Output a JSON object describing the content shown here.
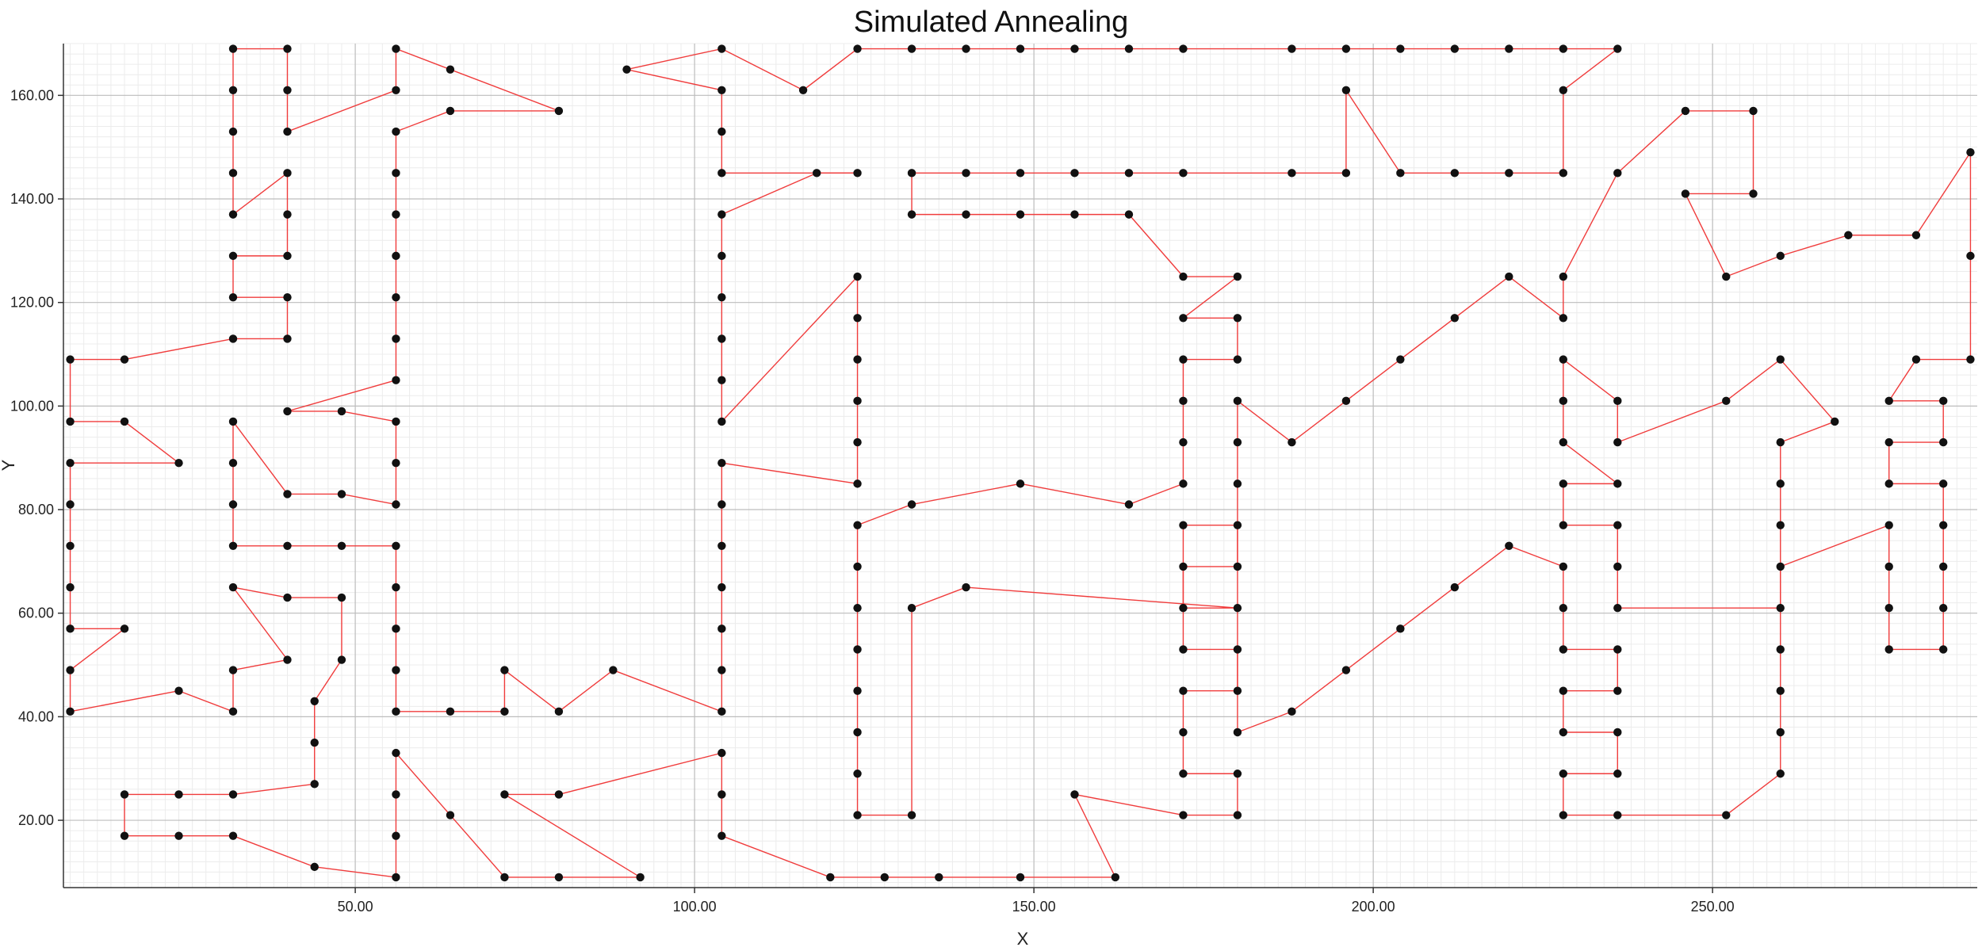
{
  "chart_data": {
    "type": "line",
    "title": "Simulated Annealing",
    "xlabel": "X",
    "ylabel": "Y",
    "xlim": [
      7,
      289
    ],
    "ylim": [
      7,
      170
    ],
    "x_ticks": [
      50,
      100,
      150,
      200,
      250
    ],
    "x_tick_labels": [
      "50.00",
      "100.00",
      "150.00",
      "200.00",
      "250.00"
    ],
    "y_ticks": [
      20,
      40,
      60,
      80,
      100,
      120,
      140,
      160
    ],
    "y_tick_labels": [
      "20.00",
      "40.00",
      "60.00",
      "80.00",
      "100.00",
      "120.00",
      "140.00",
      "160.00"
    ],
    "grid": true,
    "line_color": "#f03c3c",
    "point_color": "#111111",
    "series": [
      {
        "closed": true,
        "points": [
          [
            8,
            109
          ],
          [
            16,
            109
          ],
          [
            32,
            113
          ],
          [
            40,
            113
          ],
          [
            40,
            121
          ],
          [
            32,
            121
          ],
          [
            32,
            129
          ],
          [
            40,
            129
          ],
          [
            40,
            137
          ],
          [
            40,
            145
          ],
          [
            32,
            137
          ],
          [
            32,
            145
          ],
          [
            32,
            153
          ],
          [
            32,
            161
          ],
          [
            32,
            169
          ],
          [
            40,
            169
          ],
          [
            40,
            161
          ],
          [
            40,
            153
          ],
          [
            56,
            161
          ],
          [
            56,
            169
          ],
          [
            64,
            165
          ],
          [
            80,
            157
          ],
          [
            64,
            157
          ],
          [
            56,
            153
          ],
          [
            56,
            145
          ],
          [
            56,
            137
          ],
          [
            56,
            129
          ],
          [
            56,
            121
          ],
          [
            56,
            113
          ],
          [
            56,
            105
          ],
          [
            40,
            99
          ],
          [
            48,
            99
          ],
          [
            56,
            97
          ],
          [
            56,
            89
          ],
          [
            56,
            81
          ],
          [
            48,
            83
          ],
          [
            40,
            83
          ],
          [
            32,
            97
          ],
          [
            32,
            89
          ],
          [
            32,
            81
          ],
          [
            32,
            73
          ],
          [
            40,
            73
          ],
          [
            48,
            73
          ],
          [
            56,
            73
          ],
          [
            56,
            65
          ],
          [
            56,
            57
          ],
          [
            56,
            49
          ],
          [
            56,
            41
          ],
          [
            64,
            41
          ],
          [
            72,
            41
          ],
          [
            72,
            49
          ],
          [
            80,
            41
          ],
          [
            88,
            49
          ],
          [
            104,
            41
          ],
          [
            104,
            49
          ],
          [
            104,
            57
          ],
          [
            104,
            65
          ],
          [
            104,
            73
          ],
          [
            104,
            81
          ],
          [
            104,
            89
          ],
          [
            124,
            85
          ],
          [
            124,
            93
          ],
          [
            124,
            101
          ],
          [
            124,
            109
          ],
          [
            124,
            117
          ],
          [
            124,
            125
          ],
          [
            104,
            97
          ],
          [
            104,
            105
          ],
          [
            104,
            113
          ],
          [
            104,
            121
          ],
          [
            104,
            129
          ],
          [
            104,
            137
          ],
          [
            118,
            145
          ],
          [
            124,
            145
          ],
          [
            104,
            145
          ],
          [
            104,
            153
          ],
          [
            104,
            161
          ],
          [
            90,
            165
          ],
          [
            104,
            169
          ],
          [
            116,
            161
          ],
          [
            124,
            169
          ],
          [
            132,
            169
          ],
          [
            140,
            169
          ],
          [
            148,
            169
          ],
          [
            156,
            169
          ],
          [
            164,
            169
          ],
          [
            172,
            169
          ],
          [
            188,
            169
          ],
          [
            196,
            169
          ],
          [
            204,
            169
          ],
          [
            212,
            169
          ],
          [
            220,
            169
          ],
          [
            228,
            169
          ],
          [
            236,
            169
          ],
          [
            228,
            161
          ],
          [
            228,
            145
          ],
          [
            220,
            145
          ],
          [
            212,
            145
          ],
          [
            204,
            145
          ],
          [
            196,
            161
          ],
          [
            196,
            145
          ],
          [
            188,
            145
          ],
          [
            172,
            145
          ],
          [
            164,
            145
          ],
          [
            156,
            145
          ],
          [
            148,
            145
          ],
          [
            140,
            145
          ],
          [
            132,
            145
          ],
          [
            132,
            137
          ],
          [
            140,
            137
          ],
          [
            148,
            137
          ],
          [
            156,
            137
          ],
          [
            164,
            137
          ],
          [
            172,
            125
          ],
          [
            180,
            125
          ],
          [
            172,
            117
          ],
          [
            180,
            117
          ],
          [
            180,
            109
          ],
          [
            172,
            109
          ],
          [
            172,
            101
          ],
          [
            172,
            93
          ],
          [
            172,
            85
          ],
          [
            164,
            81
          ],
          [
            148,
            85
          ],
          [
            132,
            81
          ],
          [
            124,
            77
          ],
          [
            124,
            69
          ],
          [
            124,
            61
          ],
          [
            124,
            53
          ],
          [
            124,
            45
          ],
          [
            124,
            37
          ],
          [
            124,
            29
          ],
          [
            124,
            21
          ],
          [
            132,
            21
          ],
          [
            132,
            61
          ],
          [
            140,
            65
          ],
          [
            180,
            61
          ],
          [
            172,
            61
          ],
          [
            172,
            69
          ],
          [
            180,
            69
          ],
          [
            180,
            77
          ],
          [
            172,
            77
          ],
          [
            172,
            53
          ],
          [
            180,
            53
          ],
          [
            180,
            45
          ],
          [
            172,
            45
          ],
          [
            172,
            37
          ],
          [
            172,
            29
          ],
          [
            180,
            29
          ],
          [
            180,
            21
          ],
          [
            172,
            21
          ],
          [
            156,
            25
          ],
          [
            162,
            9
          ],
          [
            148,
            9
          ],
          [
            136,
            9
          ],
          [
            128,
            9
          ],
          [
            120,
            9
          ],
          [
            104,
            17
          ],
          [
            104,
            25
          ],
          [
            104,
            33
          ],
          [
            80,
            25
          ],
          [
            72,
            25
          ],
          [
            92,
            9
          ],
          [
            80,
            9
          ],
          [
            72,
            9
          ],
          [
            64,
            21
          ],
          [
            56,
            33
          ],
          [
            56,
            25
          ],
          [
            56,
            17
          ],
          [
            56,
            9
          ],
          [
            44,
            11
          ],
          [
            32,
            17
          ],
          [
            24,
            17
          ],
          [
            16,
            17
          ],
          [
            16,
            25
          ],
          [
            24,
            25
          ],
          [
            32,
            25
          ],
          [
            44,
            27
          ],
          [
            44,
            35
          ],
          [
            44,
            43
          ],
          [
            48,
            51
          ],
          [
            48,
            63
          ],
          [
            40,
            63
          ],
          [
            32,
            65
          ],
          [
            40,
            51
          ],
          [
            32,
            49
          ],
          [
            32,
            41
          ],
          [
            24,
            45
          ],
          [
            8,
            41
          ],
          [
            8,
            49
          ],
          [
            16,
            57
          ],
          [
            8,
            57
          ],
          [
            8,
            65
          ],
          [
            8,
            73
          ],
          [
            8,
            81
          ],
          [
            8,
            89
          ],
          [
            24,
            89
          ],
          [
            16,
            97
          ],
          [
            8,
            97
          ]
        ]
      },
      {
        "closed": true,
        "points": [
          [
            180,
            101
          ],
          [
            188,
            93
          ],
          [
            196,
            101
          ],
          [
            204,
            109
          ],
          [
            212,
            117
          ],
          [
            220,
            125
          ],
          [
            228,
            117
          ],
          [
            228,
            125
          ],
          [
            236,
            145
          ],
          [
            246,
            157
          ],
          [
            256,
            157
          ],
          [
            256,
            141
          ],
          [
            246,
            141
          ],
          [
            252,
            125
          ],
          [
            260,
            129
          ],
          [
            270,
            133
          ],
          [
            280,
            133
          ],
          [
            288,
            149
          ],
          [
            288,
            129
          ],
          [
            288,
            109
          ],
          [
            280,
            109
          ],
          [
            276,
            101
          ],
          [
            284,
            101
          ],
          [
            284,
            93
          ],
          [
            276,
            93
          ],
          [
            276,
            85
          ],
          [
            284,
            85
          ],
          [
            284,
            77
          ],
          [
            284,
            69
          ],
          [
            284,
            61
          ],
          [
            284,
            53
          ],
          [
            276,
            53
          ],
          [
            276,
            61
          ],
          [
            276,
            69
          ],
          [
            276,
            77
          ],
          [
            260,
            69
          ],
          [
            260,
            61
          ],
          [
            236,
            61
          ],
          [
            236,
            69
          ],
          [
            236,
            77
          ],
          [
            228,
            77
          ],
          [
            228,
            85
          ],
          [
            236,
            85
          ],
          [
            228,
            93
          ],
          [
            228,
            101
          ],
          [
            228,
            109
          ],
          [
            236,
            101
          ],
          [
            236,
            93
          ],
          [
            252,
            101
          ],
          [
            260,
            109
          ],
          [
            268,
            97
          ],
          [
            260,
            93
          ],
          [
            260,
            85
          ],
          [
            260,
            77
          ],
          [
            260,
            53
          ],
          [
            260,
            45
          ],
          [
            260,
            37
          ],
          [
            260,
            29
          ],
          [
            252,
            21
          ],
          [
            236,
            21
          ],
          [
            228,
            21
          ],
          [
            228,
            29
          ],
          [
            236,
            29
          ],
          [
            236,
            37
          ],
          [
            228,
            37
          ],
          [
            228,
            45
          ],
          [
            236,
            45
          ],
          [
            236,
            53
          ],
          [
            228,
            53
          ],
          [
            228,
            61
          ],
          [
            228,
            69
          ],
          [
            220,
            73
          ],
          [
            212,
            65
          ],
          [
            204,
            57
          ],
          [
            196,
            49
          ],
          [
            188,
            41
          ],
          [
            180,
            37
          ],
          [
            180,
            85
          ],
          [
            180,
            93
          ]
        ]
      }
    ]
  }
}
